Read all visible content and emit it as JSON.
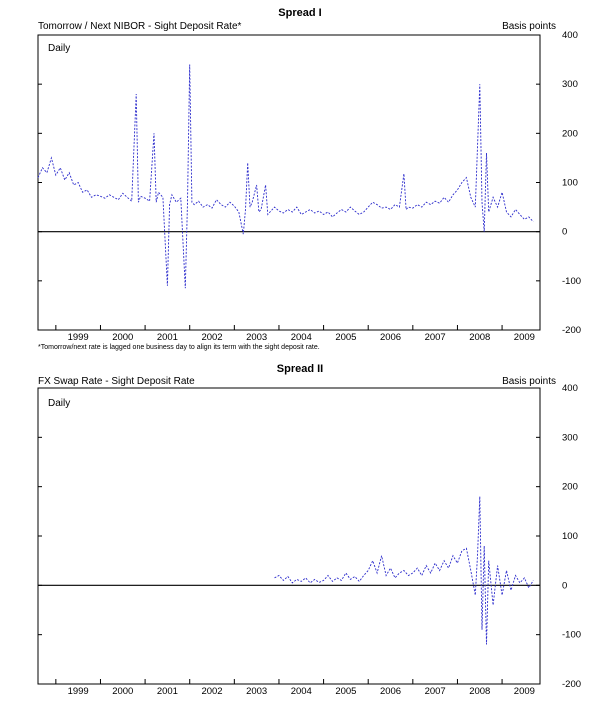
{
  "charts": [
    {
      "title": "Spread I",
      "subtitle": "Tomorrow / Next NIBOR - Sight Deposit Rate*",
      "unit_label": "Basis points",
      "frequency_label": "Daily",
      "footnote": "*Tomorrow/next rate is lagged one business day to align its term with the sight deposit rate."
    },
    {
      "title": "Spread II",
      "subtitle": "FX Swap Rate - Sight Deposit Rate",
      "unit_label": "Basis points",
      "frequency_label": "Daily",
      "footnote": ""
    }
  ],
  "chart_data": [
    {
      "type": "line",
      "title": "Spread I",
      "series": [
        {
          "color": "#2b2bcc",
          "points": [
            [
              1998.6,
              110
            ],
            [
              1998.7,
              130
            ],
            [
              1998.8,
              120
            ],
            [
              1998.9,
              150
            ],
            [
              1999.0,
              115
            ],
            [
              1999.1,
              130
            ],
            [
              1999.2,
              105
            ],
            [
              1999.3,
              120
            ],
            [
              1999.4,
              95
            ],
            [
              1999.5,
              100
            ],
            [
              1999.6,
              80
            ],
            [
              1999.7,
              85
            ],
            [
              1999.8,
              70
            ],
            [
              1999.9,
              75
            ],
            [
              2000.0,
              72
            ],
            [
              2000.1,
              68
            ],
            [
              2000.2,
              75
            ],
            [
              2000.3,
              70
            ],
            [
              2000.4,
              65
            ],
            [
              2000.5,
              78
            ],
            [
              2000.6,
              70
            ],
            [
              2000.7,
              62
            ],
            [
              2000.8,
              280
            ],
            [
              2000.85,
              60
            ],
            [
              2000.9,
              72
            ],
            [
              2001.0,
              68
            ],
            [
              2001.1,
              62
            ],
            [
              2001.2,
              200
            ],
            [
              2001.25,
              60
            ],
            [
              2001.3,
              80
            ],
            [
              2001.4,
              70
            ],
            [
              2001.5,
              -110
            ],
            [
              2001.55,
              55
            ],
            [
              2001.6,
              75
            ],
            [
              2001.7,
              60
            ],
            [
              2001.8,
              68
            ],
            [
              2001.9,
              -115
            ],
            [
              2001.95,
              60
            ],
            [
              2002.0,
              340
            ],
            [
              2002.05,
              60
            ],
            [
              2002.1,
              55
            ],
            [
              2002.2,
              62
            ],
            [
              2002.3,
              50
            ],
            [
              2002.4,
              55
            ],
            [
              2002.5,
              48
            ],
            [
              2002.6,
              65
            ],
            [
              2002.7,
              55
            ],
            [
              2002.8,
              50
            ],
            [
              2002.9,
              60
            ],
            [
              2003.0,
              52
            ],
            [
              2003.1,
              40
            ],
            [
              2003.2,
              -5
            ],
            [
              2003.25,
              45
            ],
            [
              2003.3,
              140
            ],
            [
              2003.35,
              50
            ],
            [
              2003.4,
              60
            ],
            [
              2003.5,
              95
            ],
            [
              2003.55,
              40
            ],
            [
              2003.6,
              45
            ],
            [
              2003.7,
              95
            ],
            [
              2003.75,
              35
            ],
            [
              2003.8,
              40
            ],
            [
              2003.9,
              50
            ],
            [
              2004.0,
              42
            ],
            [
              2004.1,
              38
            ],
            [
              2004.2,
              45
            ],
            [
              2004.3,
              40
            ],
            [
              2004.4,
              50
            ],
            [
              2004.5,
              35
            ],
            [
              2004.6,
              40
            ],
            [
              2004.7,
              45
            ],
            [
              2004.8,
              38
            ],
            [
              2004.9,
              42
            ],
            [
              2005.0,
              35
            ],
            [
              2005.1,
              40
            ],
            [
              2005.2,
              30
            ],
            [
              2005.3,
              38
            ],
            [
              2005.4,
              45
            ],
            [
              2005.5,
              40
            ],
            [
              2005.6,
              50
            ],
            [
              2005.7,
              42
            ],
            [
              2005.8,
              35
            ],
            [
              2005.9,
              40
            ],
            [
              2006.0,
              50
            ],
            [
              2006.1,
              60
            ],
            [
              2006.2,
              55
            ],
            [
              2006.3,
              48
            ],
            [
              2006.4,
              50
            ],
            [
              2006.5,
              45
            ],
            [
              2006.6,
              55
            ],
            [
              2006.7,
              50
            ],
            [
              2006.8,
              118
            ],
            [
              2006.85,
              45
            ],
            [
              2006.9,
              50
            ],
            [
              2007.0,
              48
            ],
            [
              2007.1,
              55
            ],
            [
              2007.2,
              50
            ],
            [
              2007.3,
              60
            ],
            [
              2007.4,
              55
            ],
            [
              2007.5,
              62
            ],
            [
              2007.6,
              58
            ],
            [
              2007.7,
              70
            ],
            [
              2007.8,
              60
            ],
            [
              2007.9,
              75
            ],
            [
              2008.0,
              85
            ],
            [
              2008.1,
              100
            ],
            [
              2008.2,
              110
            ],
            [
              2008.3,
              70
            ],
            [
              2008.4,
              50
            ],
            [
              2008.5,
              300
            ],
            [
              2008.55,
              60
            ],
            [
              2008.6,
              0
            ],
            [
              2008.65,
              160
            ],
            [
              2008.7,
              40
            ],
            [
              2008.8,
              70
            ],
            [
              2008.9,
              50
            ],
            [
              2009.0,
              80
            ],
            [
              2009.1,
              40
            ],
            [
              2009.2,
              30
            ],
            [
              2009.3,
              45
            ],
            [
              2009.4,
              35
            ],
            [
              2009.5,
              25
            ],
            [
              2009.6,
              30
            ],
            [
              2009.7,
              20
            ]
          ]
        }
      ],
      "xlim": [
        1998.6,
        2009.85
      ],
      "ylim": [
        -200,
        400
      ],
      "x_ticks": [
        "1999",
        "2000",
        "2001",
        "2002",
        "2003",
        "2004",
        "2005",
        "2006",
        "2007",
        "2008",
        "2009"
      ],
      "y_ticks": [
        -200,
        -100,
        0,
        100,
        200,
        300,
        400
      ]
    },
    {
      "type": "line",
      "title": "Spread II",
      "series": [
        {
          "color": "#2b2bcc",
          "points": [
            [
              2003.9,
              15
            ],
            [
              2004.0,
              20
            ],
            [
              2004.1,
              10
            ],
            [
              2004.2,
              18
            ],
            [
              2004.3,
              5
            ],
            [
              2004.4,
              12
            ],
            [
              2004.5,
              8
            ],
            [
              2004.6,
              15
            ],
            [
              2004.7,
              5
            ],
            [
              2004.8,
              12
            ],
            [
              2004.9,
              6
            ],
            [
              2005.0,
              10
            ],
            [
              2005.1,
              20
            ],
            [
              2005.2,
              8
            ],
            [
              2005.3,
              15
            ],
            [
              2005.4,
              10
            ],
            [
              2005.5,
              25
            ],
            [
              2005.6,
              12
            ],
            [
              2005.7,
              18
            ],
            [
              2005.8,
              8
            ],
            [
              2005.9,
              20
            ],
            [
              2006.0,
              30
            ],
            [
              2006.1,
              50
            ],
            [
              2006.2,
              25
            ],
            [
              2006.3,
              60
            ],
            [
              2006.4,
              20
            ],
            [
              2006.5,
              35
            ],
            [
              2006.6,
              15
            ],
            [
              2006.7,
              25
            ],
            [
              2006.8,
              30
            ],
            [
              2006.9,
              20
            ],
            [
              2007.0,
              25
            ],
            [
              2007.1,
              35
            ],
            [
              2007.2,
              20
            ],
            [
              2007.3,
              40
            ],
            [
              2007.4,
              25
            ],
            [
              2007.5,
              45
            ],
            [
              2007.6,
              30
            ],
            [
              2007.7,
              50
            ],
            [
              2007.8,
              35
            ],
            [
              2007.9,
              60
            ],
            [
              2008.0,
              45
            ],
            [
              2008.1,
              70
            ],
            [
              2008.2,
              75
            ],
            [
              2008.3,
              30
            ],
            [
              2008.4,
              -20
            ],
            [
              2008.45,
              60
            ],
            [
              2008.5,
              180
            ],
            [
              2008.55,
              -90
            ],
            [
              2008.6,
              80
            ],
            [
              2008.65,
              -120
            ],
            [
              2008.7,
              50
            ],
            [
              2008.8,
              -40
            ],
            [
              2008.9,
              40
            ],
            [
              2009.0,
              -20
            ],
            [
              2009.1,
              30
            ],
            [
              2009.2,
              -10
            ],
            [
              2009.3,
              20
            ],
            [
              2009.4,
              5
            ],
            [
              2009.5,
              15
            ],
            [
              2009.6,
              -5
            ],
            [
              2009.7,
              10
            ]
          ]
        }
      ],
      "xlim": [
        1998.6,
        2009.85
      ],
      "ylim": [
        -200,
        400
      ],
      "x_ticks": [
        "1999",
        "2000",
        "2001",
        "2002",
        "2003",
        "2004",
        "2005",
        "2006",
        "2007",
        "2008",
        "2009"
      ],
      "y_ticks": [
        -200,
        -100,
        0,
        100,
        200,
        300,
        400
      ]
    }
  ]
}
